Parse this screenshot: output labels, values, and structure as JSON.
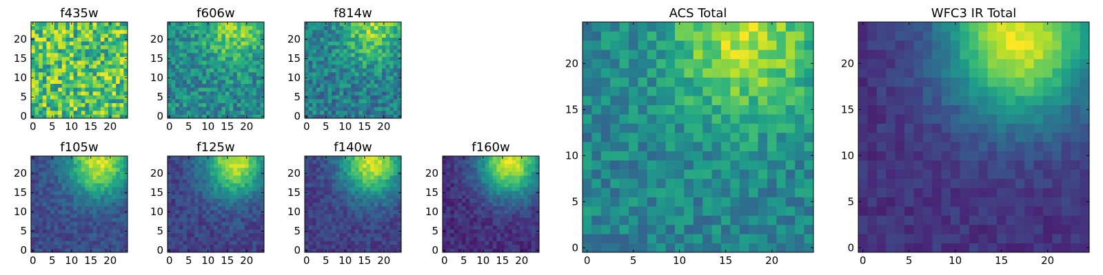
{
  "chart_data": [
    {
      "type": "heatmap",
      "title": "f435w",
      "xlim": [
        -0.5,
        24.5
      ],
      "ylim": [
        -0.5,
        24.5
      ],
      "xticks": [
        0,
        5,
        10,
        15,
        20
      ],
      "yticks": [
        0,
        5,
        10,
        15,
        20
      ],
      "grid_size": 25,
      "colormap": "viridis",
      "mean": 0.72,
      "gradient": 0.0,
      "noise": 0.55,
      "seed": 11
    },
    {
      "type": "heatmap",
      "title": "f606w",
      "xlim": [
        -0.5,
        24.5
      ],
      "ylim": [
        -0.5,
        24.5
      ],
      "xticks": [
        0,
        5,
        10,
        15,
        20
      ],
      "yticks": [
        0,
        5,
        10,
        15,
        20
      ],
      "grid_size": 25,
      "colormap": "viridis",
      "mean": 0.55,
      "gradient": 0.35,
      "noise": 0.35,
      "seed": 23
    },
    {
      "type": "heatmap",
      "title": "f814w",
      "xlim": [
        -0.5,
        24.5
      ],
      "ylim": [
        -0.5,
        24.5
      ],
      "xticks": [
        0,
        5,
        10,
        15,
        20
      ],
      "yticks": [
        0,
        5,
        10,
        15,
        20
      ],
      "grid_size": 25,
      "colormap": "viridis",
      "mean": 0.5,
      "gradient": 0.4,
      "noise": 0.35,
      "seed": 37
    },
    {
      "type": "heatmap",
      "title": "f105w",
      "xlim": [
        -0.5,
        24.5
      ],
      "ylim": [
        -0.5,
        24.5
      ],
      "xticks": [
        0,
        5,
        10,
        15,
        20
      ],
      "yticks": [
        0,
        5,
        10,
        15,
        20
      ],
      "grid_size": 25,
      "colormap": "viridis",
      "mean": 0.32,
      "gradient": 0.7,
      "noise": 0.18,
      "seed": 41
    },
    {
      "type": "heatmap",
      "title": "f125w",
      "xlim": [
        -0.5,
        24.5
      ],
      "ylim": [
        -0.5,
        24.5
      ],
      "xticks": [
        0,
        5,
        10,
        15,
        20
      ],
      "yticks": [
        0,
        5,
        10,
        15,
        20
      ],
      "grid_size": 25,
      "colormap": "viridis",
      "mean": 0.28,
      "gradient": 0.72,
      "noise": 0.18,
      "seed": 53
    },
    {
      "type": "heatmap",
      "title": "f140w",
      "xlim": [
        -0.5,
        24.5
      ],
      "ylim": [
        -0.5,
        24.5
      ],
      "xticks": [
        0,
        5,
        10,
        15,
        20
      ],
      "yticks": [
        0,
        5,
        10,
        15,
        20
      ],
      "grid_size": 25,
      "colormap": "viridis",
      "mean": 0.27,
      "gradient": 0.74,
      "noise": 0.17,
      "seed": 67
    },
    {
      "type": "heatmap",
      "title": "f160w",
      "xlim": [
        -0.5,
        24.5
      ],
      "ylim": [
        -0.5,
        24.5
      ],
      "xticks": [
        0,
        5,
        10,
        15,
        20
      ],
      "yticks": [
        0,
        5,
        10,
        15,
        20
      ],
      "grid_size": 25,
      "colormap": "viridis",
      "mean": 0.2,
      "gradient": 0.8,
      "noise": 0.16,
      "seed": 79
    },
    {
      "type": "heatmap",
      "title": "ACS Total",
      "xlim": [
        -0.5,
        24.5
      ],
      "ylim": [
        -0.5,
        24.5
      ],
      "xticks": [
        0,
        5,
        10,
        15,
        20
      ],
      "yticks": [
        0,
        5,
        10,
        15,
        20
      ],
      "grid_size": 25,
      "colormap": "viridis",
      "mean": 0.55,
      "gradient": 0.45,
      "noise": 0.28,
      "seed": 97
    },
    {
      "type": "heatmap",
      "title": "WFC3 IR Total",
      "xlim": [
        -0.5,
        24.5
      ],
      "ylim": [
        -0.5,
        24.5
      ],
      "xticks": [
        0,
        5,
        10,
        15,
        20
      ],
      "yticks": [
        0,
        5,
        10,
        15,
        20
      ],
      "grid_size": 25,
      "colormap": "viridis",
      "mean": 0.22,
      "gradient": 0.82,
      "noise": 0.12,
      "seed": 113
    }
  ]
}
